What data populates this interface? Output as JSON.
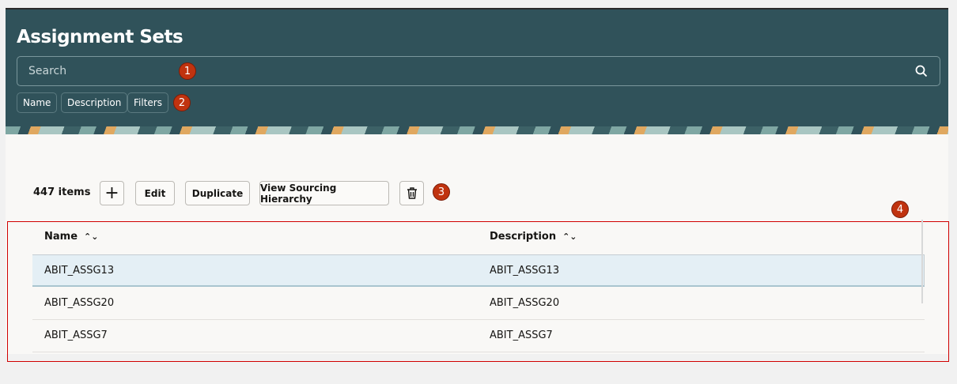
{
  "header": {
    "title": "Assignment Sets",
    "search_placeholder": "Search",
    "chips": [
      "Name",
      "Description",
      "Filters"
    ]
  },
  "toolbar": {
    "count": "447 items",
    "add_label": "+",
    "edit_label": "Edit",
    "duplicate_label": "Duplicate",
    "view_hierarchy_label": "View Sourcing Hierarchy"
  },
  "badges": [
    "1",
    "2",
    "3",
    "4"
  ],
  "table": {
    "columns": [
      "Name",
      "Description"
    ],
    "rows": [
      [
        "ABIT_ASSG13",
        "ABIT_ASSG13"
      ],
      [
        "ABIT_ASSG20",
        "ABIT_ASSG20"
      ],
      [
        "ABIT_ASSG7",
        "ABIT_ASSG7"
      ]
    ]
  },
  "colors": {
    "header_bg": "#30525a",
    "selected_row": "#e4eff5",
    "badge": "#c0330f",
    "highlight_box": "#d00000"
  }
}
